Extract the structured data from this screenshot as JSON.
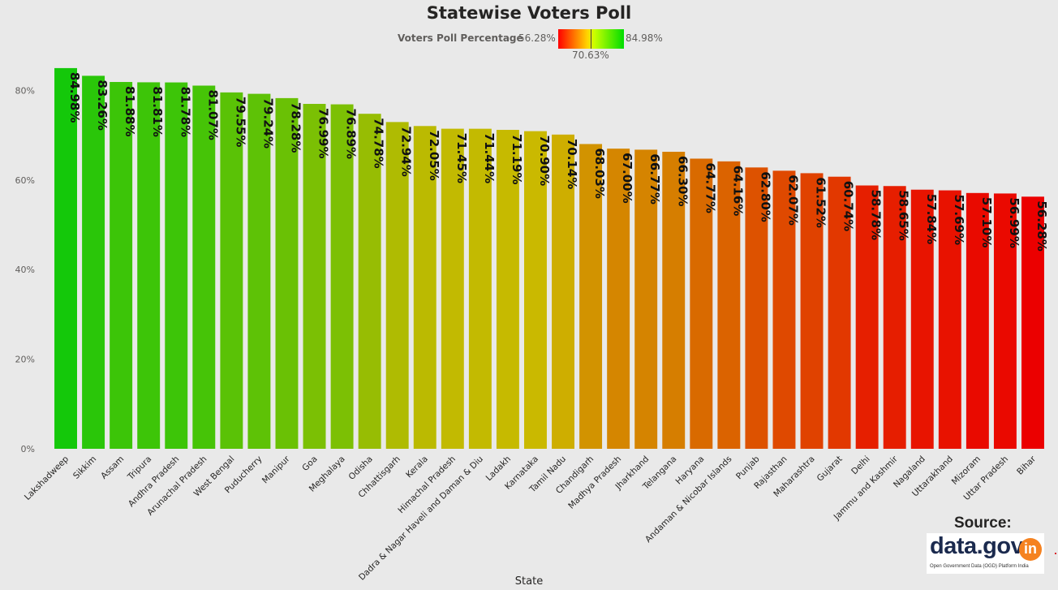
{
  "chart_data": {
    "type": "bar",
    "title": "Statewise Voters Poll",
    "xlabel": "State",
    "ylabel": "",
    "ylim": [
      0,
      85
    ],
    "yticks": [
      0,
      20,
      40,
      60,
      80
    ],
    "ytick_labels": [
      "0%",
      "20%",
      "40%",
      "60%",
      "80%"
    ],
    "grid": false,
    "legend": {
      "title": "Voters Poll Percentage",
      "min": "56.28%",
      "mid": "70.63%",
      "max": "84.98%",
      "min_color": "#ff0000",
      "max_color": "#00dd00"
    },
    "categories": [
      "Lakshadweep",
      "Sikkim",
      "Assam",
      "Tripura",
      "Andhra Pradesh",
      "Arunachal Pradesh",
      "West Bengal",
      "Puducherry",
      "Manipur",
      "Goa",
      "Meghalaya",
      "Odisha",
      "Chhattisgarh",
      "Kerala",
      "Himachal Pradesh",
      "Dadra & Nagar Haveli and Daman & Diu",
      "Ladakh",
      "Karnataka",
      "Tamil Nadu",
      "Chandigarh",
      "Madhya Pradesh",
      "Jharkhand",
      "Telangana",
      "Haryana",
      "Andaman & Nicobar Islands",
      "Punjab",
      "Rajasthan",
      "Maharashtra",
      "Gujarat",
      "Delhi",
      "Jammu and Kashmir",
      "Nagaland",
      "Uttarakhand",
      "Mizoram",
      "Uttar Pradesh",
      "Bihar"
    ],
    "values": [
      84.98,
      83.26,
      81.88,
      81.81,
      81.78,
      81.07,
      79.55,
      79.24,
      78.28,
      76.99,
      76.89,
      74.78,
      72.94,
      72.05,
      71.45,
      71.44,
      71.19,
      70.9,
      70.14,
      68.03,
      67.0,
      66.77,
      66.3,
      64.77,
      64.16,
      62.8,
      62.07,
      61.52,
      60.74,
      58.78,
      58.65,
      57.84,
      57.69,
      57.1,
      56.99,
      56.28
    ],
    "data_labels": [
      "84.98%",
      "83.26%",
      "81.88%",
      "81.81%",
      "81.78%",
      "81.07%",
      "79.55%",
      "79.24%",
      "78.28%",
      "76.99%",
      "76.89%",
      "74.78%",
      "72.94%",
      "72.05%",
      "71.45%",
      "71.44%",
      "71.19%",
      "70.90%",
      "70.14%",
      "68.03%",
      "67.00%",
      "66.77%",
      "66.30%",
      "64.77%",
      "64.16%",
      "62.80%",
      "62.07%",
      "61.52%",
      "60.74%",
      "58.78%",
      "58.65%",
      "57.84%",
      "57.69%",
      "57.10%",
      "56.99%",
      "56.28%"
    ]
  },
  "source": {
    "label": "Source:",
    "logo_text": "data.gov",
    "logo_badge": "in",
    "logo_subtitle": "Open Government Data (OGD) Platform India"
  }
}
